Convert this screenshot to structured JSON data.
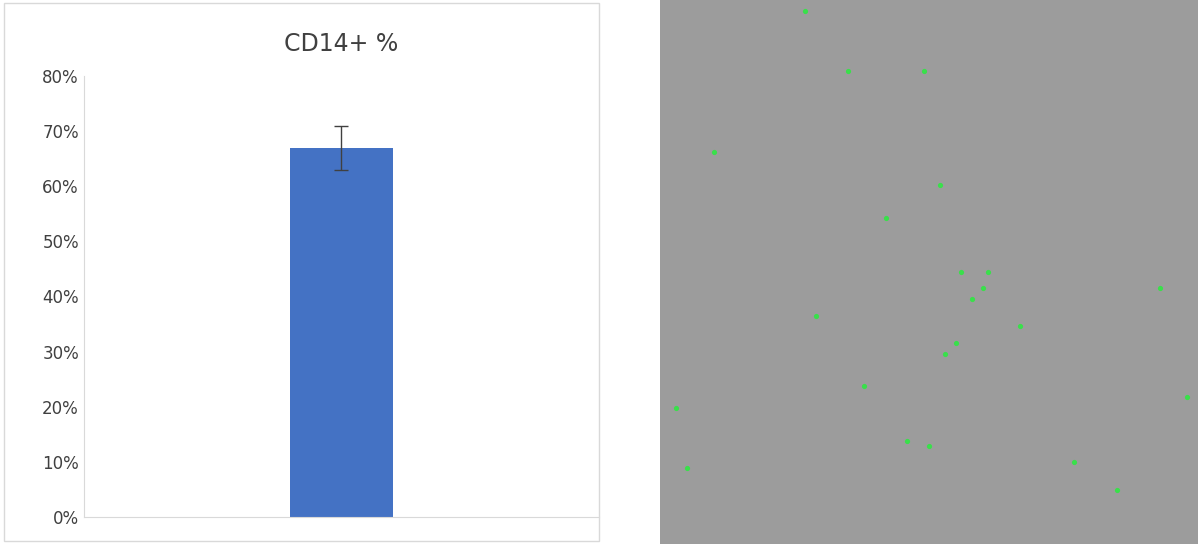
{
  "chart_data": {
    "type": "bar",
    "title": "CD14+ %",
    "categories": [
      null
    ],
    "values": [
      67
    ],
    "errors": [
      4
    ],
    "color": "#4472c4",
    "ylim": [
      0,
      80
    ],
    "yticks": [
      {
        "value": 0,
        "label": "0%"
      },
      {
        "value": 10,
        "label": "10%"
      },
      {
        "value": 20,
        "label": "20%"
      },
      {
        "value": 30,
        "label": "30%"
      },
      {
        "value": 40,
        "label": "40%"
      },
      {
        "value": 50,
        "label": "50%"
      },
      {
        "value": 60,
        "label": "60%"
      },
      {
        "value": 70,
        "label": "70%"
      },
      {
        "value": 80,
        "label": "80%"
      }
    ],
    "grid": false
  }
}
